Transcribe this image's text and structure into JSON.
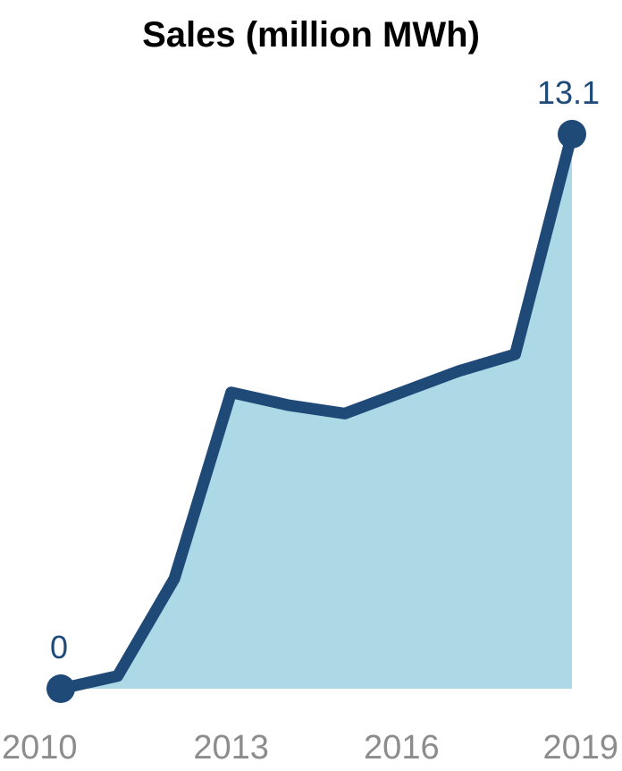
{
  "chart_data": {
    "type": "area",
    "title": "Sales (million MWh)",
    "xlabel": "",
    "ylabel": "",
    "x": [
      2010,
      2011,
      2012,
      2013,
      2014,
      2015,
      2016,
      2017,
      2018,
      2019
    ],
    "x_tick_labels": [
      "2010",
      "2013",
      "2016",
      "2019"
    ],
    "series": [
      {
        "values": [
          0,
          0.3,
          2.6,
          7.0,
          6.7,
          6.5,
          7.0,
          7.5,
          7.9,
          13.1
        ]
      }
    ],
    "data_labels": [
      {
        "x": 2010,
        "text": "0"
      },
      {
        "x": 2019,
        "text": "13.1"
      }
    ],
    "ylim": [
      0,
      13.1
    ],
    "grid": false,
    "legend": "none",
    "colors": {
      "line": "#1f4a78",
      "fill": "#add8e6",
      "label": "#1f4a78",
      "tick": "#8c8c8c"
    }
  }
}
